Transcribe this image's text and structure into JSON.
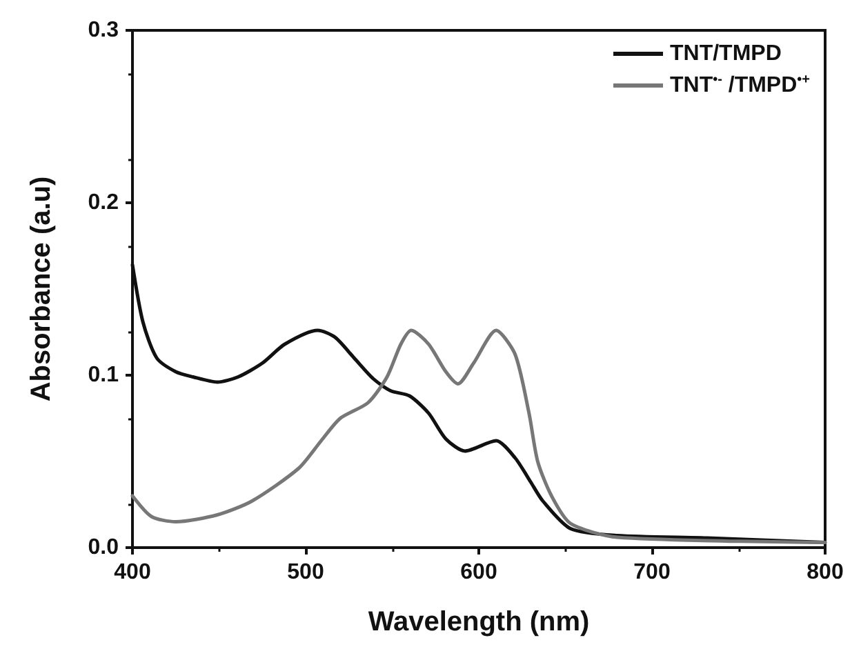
{
  "chart_data": {
    "type": "line",
    "xlabel": "Wavelength (nm)",
    "ylabel": "Absorbance (a.u)",
    "xlim": [
      400,
      800
    ],
    "xticks": [
      400,
      500,
      600,
      700,
      800
    ],
    "ylim": [
      0,
      0.3
    ],
    "yticks": [
      {
        "value": 0,
        "label": "0.0"
      },
      0.1,
      0.2,
      0.3
    ],
    "grid": false,
    "legend": "top right",
    "marker": "none",
    "line_style": "solid",
    "series": [
      {
        "name": "TNT/TMPD",
        "color": "#111111",
        "x": [
          400,
          406,
          414,
          425,
          435,
          449,
          461,
          475,
          488,
          507,
          517,
          528,
          539,
          549,
          560,
          571,
          581,
          592,
          610,
          621,
          630,
          637,
          653,
          680,
          732,
          800
        ],
        "values": [
          0.164,
          0.131,
          0.11,
          0.102,
          0.099,
          0.096,
          0.099,
          0.107,
          0.118,
          0.126,
          0.122,
          0.11,
          0.098,
          0.091,
          0.088,
          0.078,
          0.063,
          0.056,
          0.062,
          0.052,
          0.038,
          0.027,
          0.011,
          0.007,
          0.0056,
          0.003
        ]
      },
      {
        "name": "TNT$^{•-}$ /TMPD$^{•+}$",
        "color": "#777777",
        "x": [
          400,
          411,
          425,
          449,
          469,
          496,
          509,
          520,
          536,
          547,
          555,
          561,
          571,
          581,
          588,
          597,
          610,
          621,
          629,
          634,
          642,
          653,
          680,
          800
        ],
        "values": [
          0.03,
          0.018,
          0.015,
          0.019,
          0.027,
          0.046,
          0.062,
          0.075,
          0.084,
          0.099,
          0.118,
          0.126,
          0.118,
          0.102,
          0.095,
          0.107,
          0.126,
          0.112,
          0.078,
          0.05,
          0.03,
          0.014,
          0.006,
          0.003
        ]
      }
    ]
  }
}
